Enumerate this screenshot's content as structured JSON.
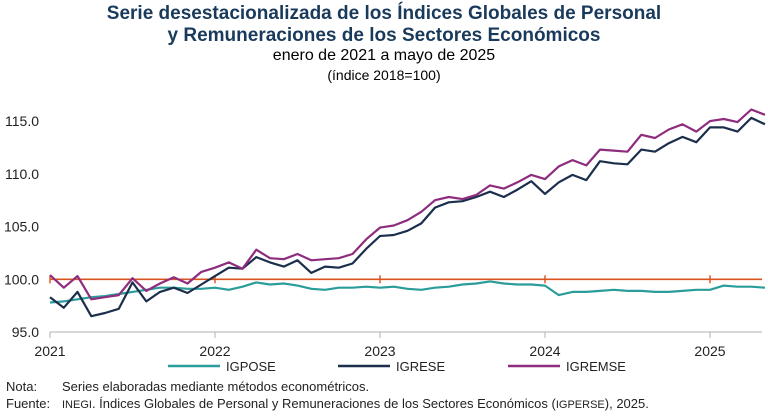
{
  "title_line1": "Serie desestacionalizada de los Índices Globales de Personal",
  "title_line2": "y Remuneraciones de los Sectores Económicos",
  "subtitle": "enero de 2021 a mayo de 2025",
  "subtitle2": "(índice 2018=100)",
  "note_label": "Nota:",
  "note_text": "Series elaboradas mediante métodos econométricos.",
  "source_label": "Fuente:",
  "source_inegi": "INEGI",
  "source_text_a": ". Índices Globales de Personal y Remuneraciones de los Sectores Económicos (",
  "source_igperse": "IGPERSE",
  "source_text_b": "), 2025.",
  "colors": {
    "igpose": "#2a9d9a",
    "igrese": "#1b2f4d",
    "igremse": "#8e2c7e",
    "reference": "#d9531e",
    "axis": "#b0b0b0"
  },
  "chart_data": {
    "type": "line",
    "x_start": "2021-01",
    "x_tick_labels": [
      "2021",
      "2022",
      "2023",
      "2024",
      "2025"
    ],
    "y_tick_labels": [
      "95.0",
      "100.0",
      "105.0",
      "110.0",
      "115.0"
    ],
    "ylim": [
      95,
      117
    ],
    "reference_line": 100,
    "series": [
      {
        "name": "IGPOSE",
        "color": "#2a9d9a",
        "values": [
          97.8,
          97.9,
          98.1,
          98.3,
          98.4,
          98.6,
          98.8,
          99.0,
          99.2,
          99.2,
          99.1,
          99.1,
          99.2,
          99.0,
          99.3,
          99.7,
          99.5,
          99.6,
          99.4,
          99.1,
          99.0,
          99.2,
          99.2,
          99.3,
          99.2,
          99.3,
          99.1,
          99.0,
          99.2,
          99.3,
          99.5,
          99.6,
          99.8,
          99.6,
          99.5,
          99.5,
          99.4,
          98.5,
          98.8,
          98.8,
          98.9,
          99.0,
          98.9,
          98.9,
          98.8,
          98.8,
          98.9,
          99.0,
          99.0,
          99.4,
          99.3,
          99.3,
          99.2
        ]
      },
      {
        "name": "IGRESE",
        "color": "#1b2f4d",
        "values": [
          98.3,
          97.3,
          98.8,
          96.5,
          96.8,
          97.2,
          99.7,
          97.9,
          98.8,
          99.2,
          98.7,
          99.5,
          100.3,
          101.1,
          101.0,
          102.1,
          101.6,
          101.2,
          101.8,
          100.6,
          101.2,
          101.1,
          101.5,
          102.9,
          104.1,
          104.2,
          104.6,
          105.3,
          106.8,
          107.3,
          107.4,
          107.8,
          108.3,
          107.8,
          108.5,
          109.3,
          108.1,
          109.2,
          109.9,
          109.4,
          111.2,
          111.0,
          110.9,
          112.3,
          112.1,
          112.9,
          113.5,
          113.0,
          114.4,
          114.4,
          114.0,
          115.3,
          114.7
        ]
      },
      {
        "name": "IGREMSE",
        "color": "#8e2c7e",
        "values": [
          100.4,
          99.2,
          100.3,
          98.1,
          98.3,
          98.5,
          100.1,
          98.9,
          99.6,
          100.2,
          99.6,
          100.7,
          101.1,
          101.6,
          101.0,
          102.8,
          102.0,
          101.9,
          102.4,
          101.8,
          101.9,
          102.0,
          102.4,
          103.8,
          104.9,
          105.1,
          105.6,
          106.4,
          107.5,
          107.8,
          107.6,
          108.0,
          108.9,
          108.6,
          109.2,
          109.9,
          109.5,
          110.7,
          111.3,
          110.8,
          112.3,
          112.2,
          112.1,
          113.7,
          113.4,
          114.2,
          114.7,
          114.0,
          115.0,
          115.2,
          114.9,
          116.1,
          115.6
        ]
      }
    ]
  }
}
